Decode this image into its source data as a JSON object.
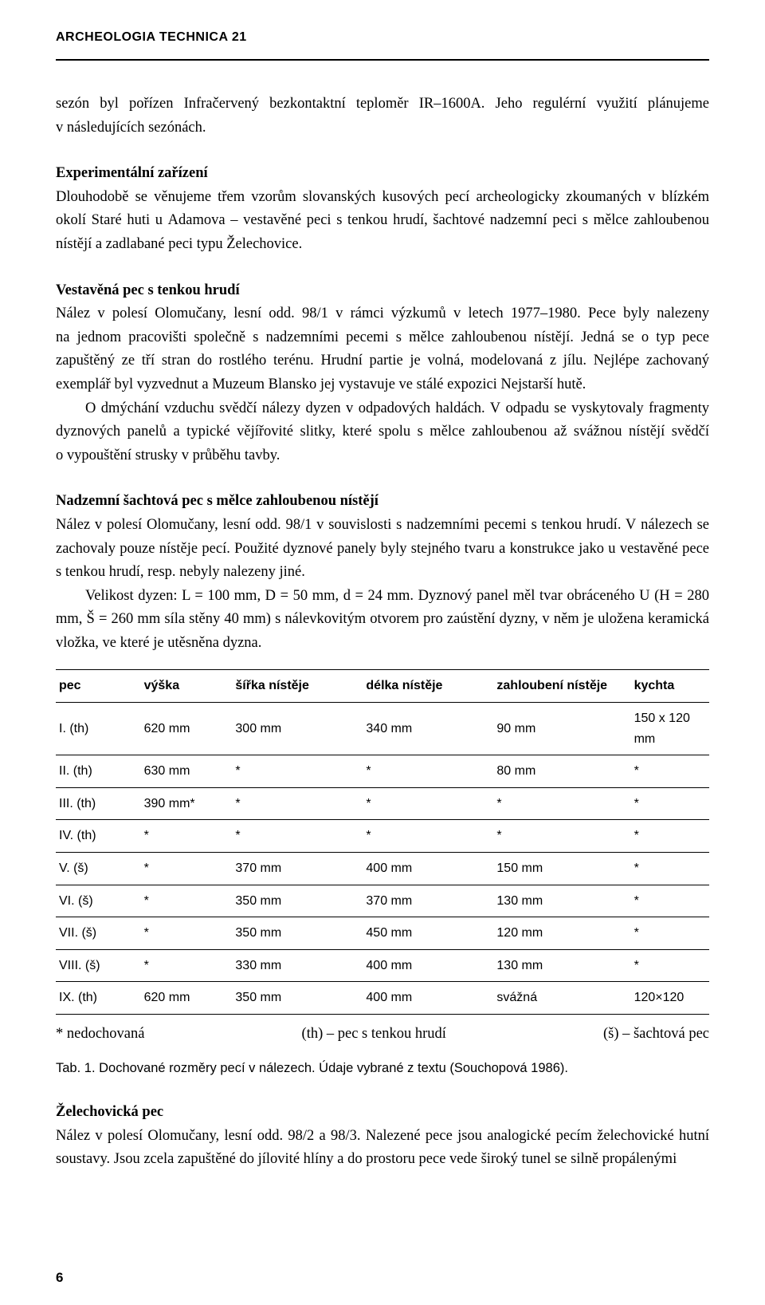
{
  "runningHead": "ARCHEOLOGIA TECHNICA 21",
  "para1": "sezón byl pořízen Infračervený bezkontaktní teploměr IR–1600A. Jeho regulérní využití plánujeme v následujících sezónách.",
  "sec1": {
    "title": "Experimentální zařízení",
    "p1": "Dlouhodobě se věnujeme třem vzorům slovanských kusových pecí archeologicky zkoumaných v blízkém okolí Staré huti u Adamova – vestavěné peci s tenkou hrudí, šachtové nadzemní peci s mělce zahloubenou nístějí a zadlabané peci typu Želechovice."
  },
  "sec2": {
    "title": "Vestavěná pec s tenkou hrudí",
    "p1": "Nález v polesí Olomučany, lesní odd. 98/1 v rámci výzkumů v letech 1977–1980. Pece byly nalezeny na jednom pracovišti společně s nadzemními pecemi s mělce zahloubenou nístějí. Jedná se o typ pece zapuštěný ze tří stran do rostlého terénu. Hrudní partie je volná, modelovaná z jílu. Nejlépe zachovaný exemplář byl vyzvednut a Muzeum Blansko jej vystavuje ve stálé expozici Nejstarší hutě.",
    "p2": "O dmýchání vzduchu svědčí nálezy dyzen v odpadových haldách. V odpadu se vyskytovaly fragmenty dyznových panelů a typické vějířovité slitky, které spolu s mělce zahloubenou až svážnou nístějí svědčí o vypouštění strusky v průběhu tavby."
  },
  "sec3": {
    "title": "Nadzemní šachtová pec s mělce zahloubenou nístějí",
    "p1": "Nález v polesí Olomučany, lesní odd. 98/1 v souvislosti s nadzemními pecemi s tenkou hrudí. V nálezech se zachovaly pouze nístěje pecí. Použité dyznové panely byly stejného tvaru a konstrukce jako u vestavěné pece s tenkou hrudí, resp. nebyly nalezeny jiné.",
    "p2": "Velikost dyzen: L = 100 mm, D = 50 mm, d = 24 mm. Dyznový panel měl tvar obráceného U (H = 280 mm, Š = 260 mm síla stěny 40 mm) s nálevkovitým otvorem pro zaústění dyzny, v něm je uložena keramická vložka, ve které je utěsněna dyzna."
  },
  "table": {
    "headers": [
      "pec",
      "výška",
      "šířka nístěje",
      "délka nístěje",
      "zahloubení nístěje",
      "kychta"
    ],
    "colWidths": [
      "13%",
      "14%",
      "20%",
      "20%",
      "21%",
      "12%"
    ],
    "rows": [
      [
        "I. (th)",
        "620 mm",
        "300 mm",
        "340 mm",
        "90 mm",
        "150 x 120 mm"
      ],
      [
        "II. (th)",
        "630 mm",
        "*",
        "*",
        "80 mm",
        "*"
      ],
      [
        "III. (th)",
        "390 mm*",
        "*",
        "*",
        "*",
        "*"
      ],
      [
        "IV. (th)",
        "*",
        "*",
        "*",
        "*",
        "*"
      ],
      [
        "V. (š)",
        "*",
        "370 mm",
        "400 mm",
        "150 mm",
        "*"
      ],
      [
        "VI. (š)",
        "*",
        "350 mm",
        "370 mm",
        "130 mm",
        "*"
      ],
      [
        "VII. (š)",
        "*",
        "350 mm",
        "450 mm",
        "120 mm",
        "*"
      ],
      [
        "VIII. (š)",
        "*",
        "330 mm",
        "400 mm",
        "130 mm",
        "*"
      ],
      [
        "IX. (th)",
        "620 mm",
        "350 mm",
        "400 mm",
        "svážná",
        "120×120"
      ]
    ]
  },
  "legend": {
    "a": "* nedochovaná",
    "b": "(th) – pec s tenkou hrudí",
    "c": "(š) – šachtová pec"
  },
  "tableCaption": "Tab. 1. Dochované rozměry pecí v nálezech. Údaje vybrané z textu (Souchopová 1986).",
  "sec4": {
    "title": "Želechovická pec",
    "p1": "Nález v polesí Olomučany, lesní odd. 98/2 a 98/3. Nalezené pece jsou analogické pecím želechovické hutní soustavy. Jsou zcela zapuštěné do jílovité hlíny a do prostoru pece vede široký tunel se silně propálenými"
  },
  "pageNumber": "6"
}
